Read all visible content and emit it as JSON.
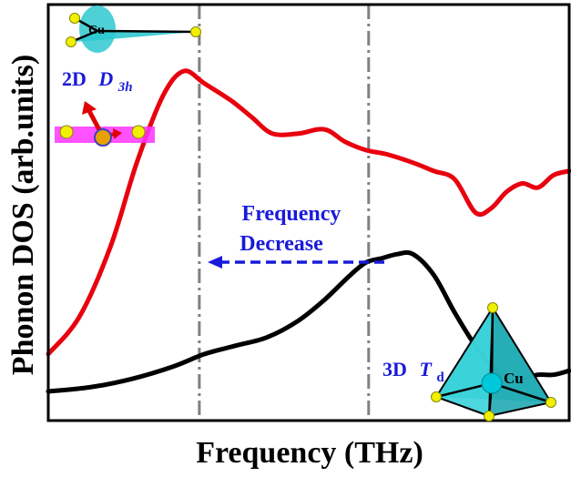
{
  "chart_data": {
    "type": "line",
    "xlabel": "Frequency (THz)",
    "ylabel": "Phonon DOS (arb.units)",
    "xlim": [
      0,
      100
    ],
    "ylim": [
      0,
      100
    ],
    "x_ticks_shown": false,
    "y_ticks_shown": false,
    "grid": false,
    "series": [
      {
        "name": "",
        "color": "#e8000e",
        "x": [
          0,
          6,
          12,
          17,
          22,
          26,
          30,
          35,
          39,
          43,
          48,
          53,
          57,
          61,
          65,
          70,
          74,
          78,
          82,
          85,
          88,
          91,
          94,
          97,
          100
        ],
        "y": [
          16,
          25,
          42,
          62,
          78,
          84,
          81,
          77,
          73,
          69,
          69,
          70,
          67,
          65,
          64,
          62,
          60,
          58,
          50,
          51,
          55,
          57,
          56,
          59,
          60
        ]
      },
      {
        "name": "",
        "color": "#000000",
        "x": [
          0,
          8,
          16,
          24,
          30,
          36,
          42,
          48,
          53,
          58,
          61,
          64,
          67,
          70,
          74,
          78,
          82,
          86,
          90,
          94,
          97,
          100
        ],
        "y": [
          7,
          8,
          10,
          13,
          16,
          18,
          20,
          24,
          29,
          35,
          38,
          39,
          40,
          40,
          35,
          26,
          18,
          12,
          10,
          11,
          11,
          12
        ]
      }
    ],
    "reference_lines": {
      "color": "#808080",
      "x": [
        29,
        61.5
      ]
    },
    "arrow": {
      "color": "#1a1adb",
      "from_x": 61.5,
      "to_x": 29,
      "y": 40,
      "label_lines": [
        "Frequency",
        "Decrease"
      ]
    },
    "annotations": {
      "red_symmetry": {
        "dim": "2D",
        "symbol": "D",
        "subscript": "3h",
        "color": "#1a1adb"
      },
      "black_symmetry": {
        "dim": "3D",
        "symbol": "T",
        "subscript": "d",
        "color": "#1a1adb"
      },
      "atom_label": "Cu"
    },
    "structure_colors": {
      "polyhedron": "#2fc8d0",
      "atom_yellow": "#f0f000",
      "atom_cyan": "#00c8dc",
      "plane_magenta": "#ff33ff",
      "vector_red": "#e00000"
    }
  }
}
